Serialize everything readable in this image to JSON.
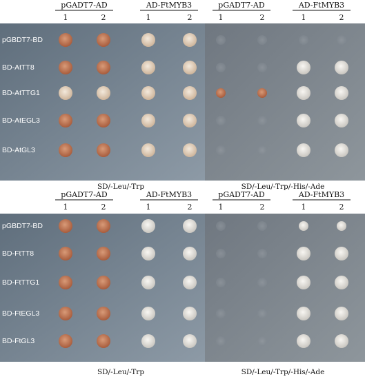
{
  "panels": [
    {
      "column_headers": [
        "pGADT7-AD",
        "AD-FtMYB3",
        "pGADT7-AD",
        "AD-FtMYB3"
      ],
      "replicates": [
        "1",
        "2",
        "1",
        "2",
        "1",
        "2",
        "1",
        "2"
      ],
      "rows": [
        "pGBDT7-BD",
        "BD-AtTT8",
        "BD-AtTTG1",
        "BD-AtEGL3",
        "BD-AtGL3"
      ],
      "media": [
        "SD/-Leu/-Trp",
        "SD/-Leu/-Trp/-His/-Ade"
      ]
    },
    {
      "column_headers": [
        "pGADT7-AD",
        "AD-FtMYB3",
        "pGADT7-AD",
        "AD-FtMYB3"
      ],
      "replicates": [
        "1",
        "2",
        "1",
        "2",
        "1",
        "2",
        "1",
        "2"
      ],
      "rows": [
        "pGBDT7-BD",
        "BD-FtTT8",
        "BD-FtTTG1",
        "BD-FtEGL3",
        "BD-FtGL3"
      ],
      "media": [
        "SD/-Leu/-Trp",
        "SD/-Leu/-Trp/-His/-Ade"
      ]
    }
  ]
}
